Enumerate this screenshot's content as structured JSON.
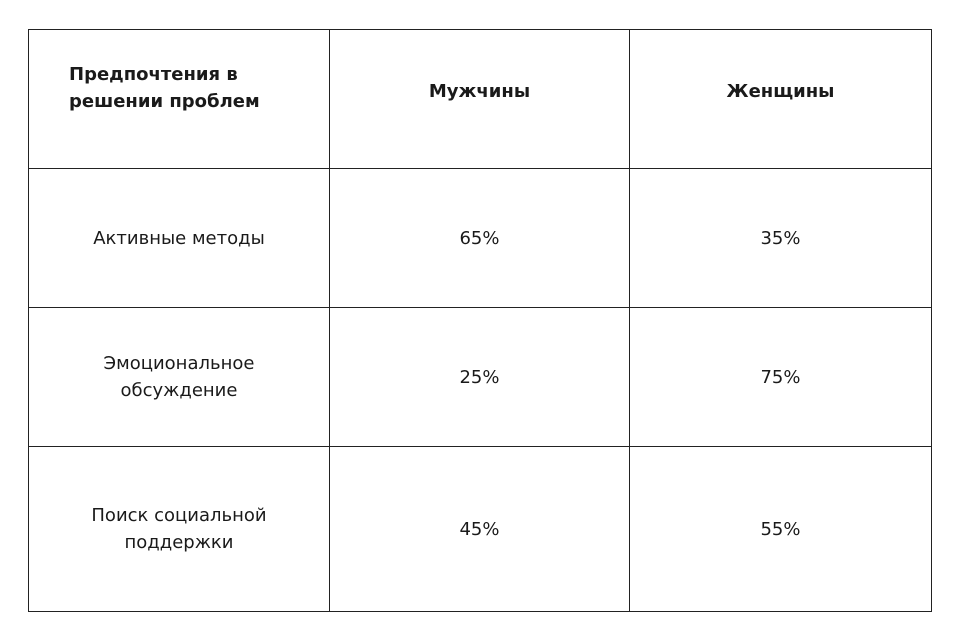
{
  "chart_data": {
    "type": "table",
    "columns": [
      "Предпочтения в решении проблем",
      "Мужчины",
      "Женщины"
    ],
    "rows": [
      {
        "label": "Активные методы",
        "men": "65%",
        "women": "35%"
      },
      {
        "label": "Эмоциональное обсуждение",
        "men": "25%",
        "women": "75%"
      },
      {
        "label": "Поиск социальной поддержки",
        "men": "45%",
        "women": "55%"
      }
    ],
    "series": [
      {
        "name": "Мужчины",
        "values": [
          65,
          25,
          45
        ]
      },
      {
        "name": "Женщины",
        "values": [
          35,
          75,
          55
        ]
      }
    ],
    "categories": [
      "Активные методы",
      "Эмоциональное обсуждение",
      "Поиск социальной поддержки"
    ]
  },
  "colors": {
    "border": "#222222",
    "text": "#1a1a1a",
    "background": "#ffffff"
  }
}
